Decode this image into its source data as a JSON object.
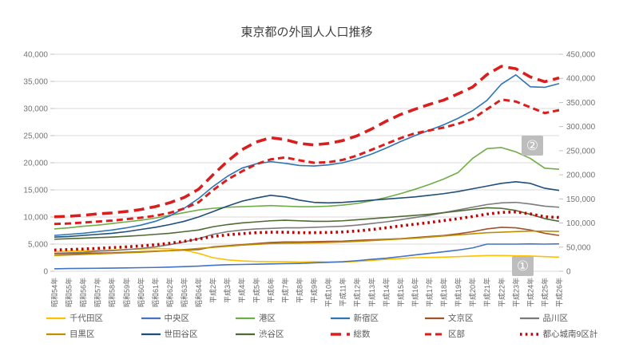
{
  "title": "東京都の外国人人口推移",
  "annotations": [
    {
      "label": "①"
    },
    {
      "label": "②"
    }
  ],
  "chart_data": {
    "type": "line",
    "title": "東京都の外国人人口推移",
    "xlabel": "",
    "ylabel_left": "",
    "ylabel_right": "",
    "grid": true,
    "legend_position": "bottom",
    "left_axis": {
      "min": 0,
      "max": 40000,
      "step": 5000,
      "tick_labels": [
        "0",
        "5,000",
        "10,000",
        "15,000",
        "20,000",
        "25,000",
        "30,000",
        "35,000",
        "40,000"
      ]
    },
    "right_axis": {
      "min": 0,
      "max": 450000,
      "step": 50000,
      "tick_labels": [
        "0",
        "50,000",
        "100,000",
        "150,000",
        "200,000",
        "250,000",
        "300,000",
        "350,000",
        "400,000",
        "450,000"
      ]
    },
    "categories": [
      "昭和54年",
      "昭和55年",
      "昭和56年",
      "昭和57年",
      "昭和58年",
      "昭和59年",
      "昭和60年",
      "昭和61年",
      "昭和62年",
      "昭和63年",
      "昭和64年",
      "平成2年",
      "平成3年",
      "平成4年",
      "平成5年",
      "平成6年",
      "平成7年",
      "平成8年",
      "平成9年",
      "平成10年",
      "平成11年",
      "平成12年",
      "平成13年",
      "平成14年",
      "平成15年",
      "平成16年",
      "平成17年",
      "平成18年",
      "平成19年",
      "平成20年",
      "平成21年",
      "平成22年",
      "平成23年",
      "平成24年",
      "平成25年",
      "平成26年"
    ],
    "series": [
      {
        "id": "chiyoda-ku",
        "name": "千代田区",
        "axis": "left",
        "color": "#FFC000",
        "style": "solid",
        "values": [
          3600,
          3700,
          3800,
          3850,
          3900,
          4000,
          4100,
          4200,
          4150,
          3900,
          3300,
          2500,
          2100,
          1900,
          1800,
          1750,
          1750,
          1700,
          1750,
          1700,
          1700,
          1800,
          2000,
          2200,
          2350,
          2500,
          2550,
          2600,
          2700,
          2800,
          2900,
          2900,
          2850,
          2800,
          2700,
          2600
        ]
      },
      {
        "id": "chuo-ku",
        "name": "中央区",
        "axis": "left",
        "color": "#4472C4",
        "style": "solid",
        "values": [
          450,
          500,
          520,
          550,
          580,
          620,
          660,
          700,
          760,
          850,
          950,
          1100,
          1200,
          1250,
          1300,
          1350,
          1400,
          1450,
          1550,
          1650,
          1750,
          1950,
          2200,
          2400,
          2700,
          3000,
          3300,
          3600,
          3900,
          4300,
          5000,
          5000,
          5000,
          5050,
          5000,
          5050
        ]
      },
      {
        "id": "minato-ku",
        "name": "港区",
        "axis": "left",
        "color": "#70AD47",
        "style": "solid",
        "values": [
          7800,
          8000,
          8300,
          8500,
          8800,
          9100,
          9400,
          9800,
          10300,
          10800,
          11300,
          11600,
          11800,
          11900,
          12000,
          12100,
          12000,
          11900,
          11900,
          12000,
          12200,
          12500,
          13000,
          13600,
          14300,
          15100,
          16000,
          17000,
          18200,
          20800,
          22600,
          22800,
          22000,
          20800,
          19000,
          18800
        ]
      },
      {
        "id": "shinjuku-ku",
        "name": "新宿区",
        "axis": "left",
        "color": "#2E75B6",
        "style": "solid",
        "values": [
          6600,
          6800,
          7000,
          7300,
          7600,
          8000,
          8500,
          9200,
          10200,
          11600,
          13400,
          15600,
          17500,
          19000,
          19800,
          20200,
          19900,
          19500,
          19400,
          19600,
          20000,
          20700,
          21600,
          22700,
          23900,
          25000,
          26000,
          27000,
          28200,
          29600,
          31500,
          34500,
          36200,
          34000,
          33900,
          34600
        ]
      },
      {
        "id": "bunkyo-ku",
        "name": "文京区",
        "axis": "left",
        "color": "#A0522D",
        "style": "solid",
        "values": [
          3200,
          3250,
          3300,
          3350,
          3400,
          3500,
          3600,
          3700,
          3800,
          3900,
          4000,
          4500,
          4700,
          4900,
          5100,
          5300,
          5400,
          5400,
          5450,
          5500,
          5550,
          5700,
          5800,
          5900,
          6000,
          6200,
          6400,
          6600,
          6900,
          7300,
          7800,
          8100,
          8000,
          7600,
          7000,
          6600
        ]
      },
      {
        "id": "shinagawa-ku",
        "name": "品川区",
        "axis": "left",
        "color": "#7B7B7B",
        "style": "solid",
        "values": [
          3300,
          3400,
          3500,
          3700,
          3800,
          4000,
          4200,
          4500,
          4900,
          5400,
          6000,
          6800,
          7300,
          7600,
          7800,
          7900,
          8000,
          8000,
          8100,
          8200,
          8300,
          8500,
          8800,
          9100,
          9500,
          9900,
          10300,
          10800,
          11300,
          11800,
          12300,
          12600,
          12700,
          12400,
          12000,
          11800
        ]
      },
      {
        "id": "meguro-ku",
        "name": "目黒区",
        "axis": "left",
        "color": "#BF8F00",
        "style": "solid",
        "values": [
          2900,
          3000,
          3100,
          3200,
          3300,
          3400,
          3500,
          3650,
          3800,
          4000,
          4200,
          4400,
          4600,
          4800,
          4950,
          5100,
          5150,
          5200,
          5250,
          5300,
          5400,
          5500,
          5650,
          5800,
          5950,
          6100,
          6300,
          6500,
          6700,
          6900,
          7100,
          7200,
          7300,
          7400,
          7400,
          7350
        ]
      },
      {
        "id": "setagaya-ku",
        "name": "世田谷区",
        "axis": "left",
        "color": "#1F4E79",
        "style": "solid",
        "values": [
          6300,
          6400,
          6600,
          6800,
          7000,
          7300,
          7700,
          8100,
          8600,
          9200,
          10000,
          11000,
          12000,
          12900,
          13500,
          14000,
          13700,
          13100,
          12700,
          12600,
          12700,
          12900,
          13100,
          13300,
          13500,
          13700,
          14000,
          14300,
          14700,
          15200,
          15700,
          16200,
          16500,
          16200,
          15300,
          14900
        ]
      },
      {
        "id": "shibuya-ku",
        "name": "渋谷区",
        "axis": "left",
        "color": "#4F6B33",
        "style": "solid",
        "values": [
          5900,
          6000,
          6100,
          6200,
          6300,
          6450,
          6600,
          6800,
          7000,
          7300,
          7600,
          8200,
          8600,
          8900,
          9100,
          9300,
          9400,
          9300,
          9200,
          9200,
          9300,
          9500,
          9700,
          9900,
          10100,
          10300,
          10500,
          10800,
          11100,
          11400,
          11700,
          11600,
          11200,
          10500,
          9700,
          9200
        ]
      },
      {
        "id": "sosu-total",
        "name": "総数",
        "axis": "right",
        "color": "#D91E1E",
        "style": "dash-thick",
        "values": [
          113000,
          114000,
          116000,
          119000,
          121000,
          124000,
          128000,
          134000,
          142000,
          153000,
          170000,
          200000,
          228000,
          252000,
          268000,
          277000,
          273000,
          265000,
          262000,
          265000,
          271000,
          281000,
          295000,
          311000,
          325000,
          336000,
          346000,
          355000,
          368000,
          382000,
          408000,
          425000,
          420000,
          403000,
          393000,
          401000
        ]
      },
      {
        "id": "kubu-wards",
        "name": "区部",
        "axis": "right",
        "color": "#D91E1E",
        "style": "dash",
        "values": [
          98000,
          99000,
          101000,
          103000,
          105000,
          108000,
          111000,
          115000,
          121000,
          130000,
          143000,
          168000,
          190000,
          207000,
          222000,
          232000,
          236000,
          230000,
          225000,
          226000,
          231000,
          240000,
          252000,
          264000,
          276000,
          286000,
          292000,
          298000,
          306000,
          316000,
          336000,
          356000,
          352000,
          340000,
          328000,
          334000
        ]
      },
      {
        "id": "toshin-jonan-9ku-total",
        "name": "都心城南9区計",
        "axis": "right",
        "color": "#C00000",
        "style": "dot-square",
        "values": [
          44000,
          45000,
          46000,
          47500,
          49000,
          50500,
          52500,
          55000,
          58000,
          62000,
          67000,
          72000,
          75500,
          78000,
          80000,
          81000,
          81000,
          80000,
          80000,
          80500,
          81500,
          83500,
          86500,
          90000,
          94000,
          97500,
          101000,
          105000,
          109000,
          113500,
          118500,
          122000,
          123000,
          119000,
          113000,
          111500
        ]
      }
    ],
    "legend_rows": [
      [
        0,
        1,
        2,
        3,
        4,
        5
      ],
      [
        6,
        7,
        8,
        9,
        10,
        11
      ]
    ]
  }
}
